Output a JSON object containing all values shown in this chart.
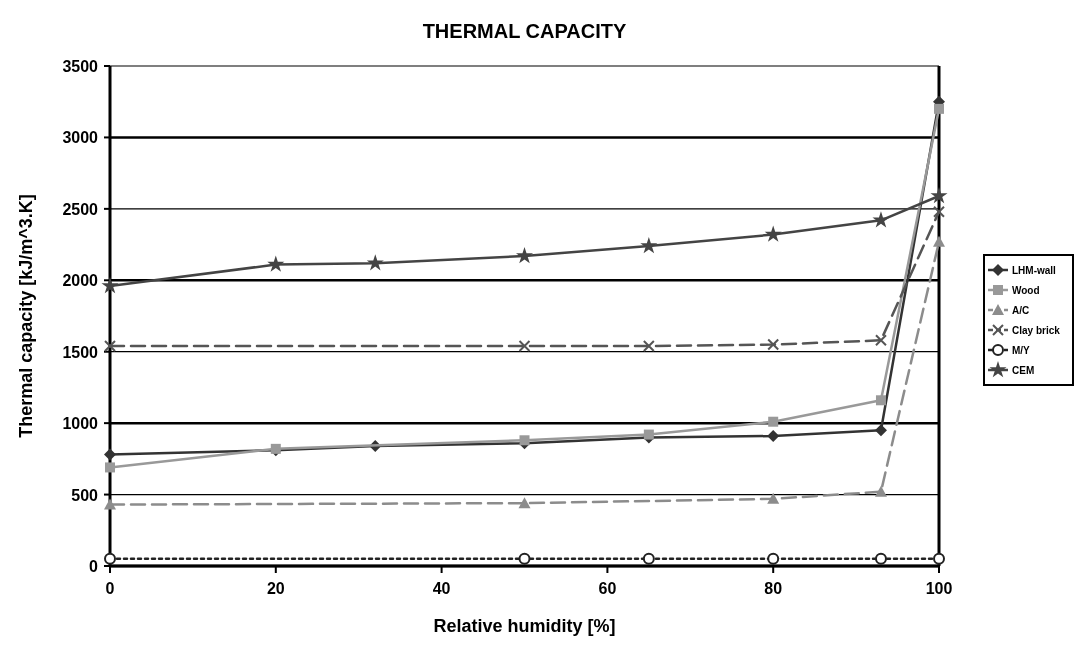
{
  "chart_data": {
    "type": "line",
    "title": "THERMAL CAPACITY",
    "xlabel": "Relative humidity [%]",
    "ylabel": "Thermal capacity [kJ/m^3.K]",
    "xlim": [
      0,
      100
    ],
    "xticks": [
      0,
      20,
      40,
      60,
      80,
      100
    ],
    "ylim": [
      0,
      3500
    ],
    "yticks": [
      0,
      500,
      1000,
      1500,
      2000,
      2500,
      3000,
      3500
    ],
    "grid": "y",
    "legend": "right",
    "series": [
      {
        "name": "LHM-wall",
        "color": "#333333",
        "marker": "diamond",
        "line_style": "solid",
        "x": [
          0,
          20,
          32,
          50,
          65,
          80,
          93,
          100
        ],
        "values": [
          780,
          810,
          840,
          860,
          900,
          910,
          950,
          3250
        ]
      },
      {
        "name": "Wood",
        "color": "#999999",
        "marker": "square",
        "line_style": "solid",
        "x": [
          0,
          20,
          50,
          65,
          80,
          93,
          100
        ],
        "values": [
          690,
          820,
          880,
          920,
          1010,
          1160,
          3200
        ]
      },
      {
        "name": "A/C",
        "color": "#8c8c8c",
        "marker": "triangle",
        "line_style": "dashed",
        "x": [
          0,
          50,
          80,
          93,
          100
        ],
        "values": [
          430,
          440,
          470,
          520,
          2270
        ]
      },
      {
        "name": "Clay brick",
        "color": "#555555",
        "marker": "cross",
        "line_style": "dashed",
        "x": [
          0,
          50,
          65,
          80,
          93,
          100
        ],
        "values": [
          1540,
          1540,
          1540,
          1550,
          1580,
          2480
        ]
      },
      {
        "name": "M/Y",
        "color": "#222222",
        "marker": "circle",
        "line_style": "dotted",
        "x": [
          0,
          50,
          65,
          80,
          93,
          100
        ],
        "values": [
          50,
          50,
          50,
          50,
          50,
          50
        ]
      },
      {
        "name": "CEM",
        "color": "#444444",
        "marker": "star",
        "line_style": "solid",
        "x": [
          0,
          20,
          32,
          50,
          65,
          80,
          93,
          100
        ],
        "values": [
          1960,
          2110,
          2120,
          2170,
          2240,
          2320,
          2420,
          2590
        ]
      }
    ]
  }
}
